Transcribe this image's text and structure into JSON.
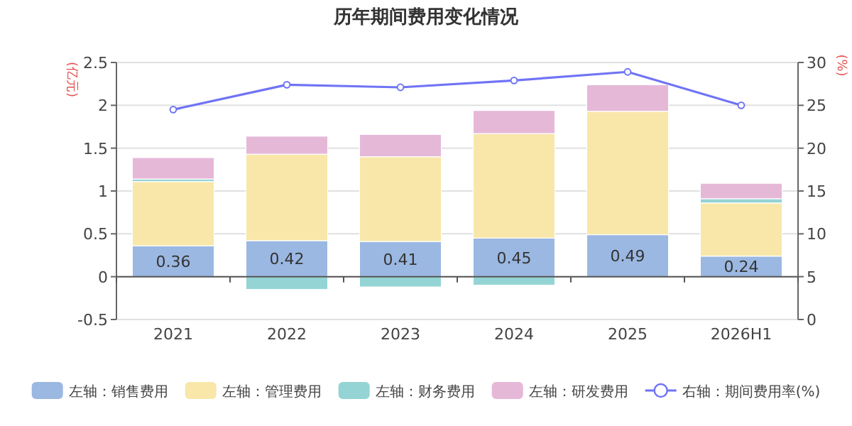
{
  "chart_data": {
    "type": "bar",
    "title": "历年期间费用变化情况",
    "ylabel": "(亿元)",
    "y2label": "(%)",
    "stacked": true,
    "categories": [
      "2021",
      "2022",
      "2023",
      "2024",
      "2025",
      "2026H1"
    ],
    "series": [
      {
        "name": "左轴：销售费用",
        "color": "#9bb8e2",
        "values": [
          0.36,
          0.42,
          0.41,
          0.45,
          0.49,
          0.24
        ],
        "value_labels": [
          "0.36",
          "0.42",
          "0.41",
          "0.45",
          "0.49",
          "0.24"
        ]
      },
      {
        "name": "左轴：管理费用",
        "color": "#f8e7a9",
        "values": [
          0.75,
          1.01,
          0.99,
          1.22,
          1.44,
          0.62
        ]
      },
      {
        "name": "左轴：财务费用",
        "color": "#94d4d4",
        "values": [
          0.03,
          -0.15,
          -0.12,
          -0.1,
          0,
          0.05
        ]
      },
      {
        "name": "左轴：研发费用",
        "color": "#e6b8d8",
        "values": [
          0.25,
          0.21,
          0.26,
          0.27,
          0.31,
          0.18
        ]
      },
      {
        "name": "右轴：期间费用率(%)",
        "type": "line",
        "axis": "y2",
        "marker": "circle",
        "color": "#6f74f5",
        "values": [
          24.5,
          27.4,
          27.1,
          27.9,
          28.9,
          25.0
        ]
      }
    ],
    "ylim": [
      -0.5,
      2.5
    ],
    "yticks": [
      -0.5,
      0,
      0.5,
      1,
      1.5,
      2,
      2.5
    ],
    "y2lim": [
      0,
      30
    ],
    "y2ticks": [
      0,
      5,
      10,
      15,
      20,
      25,
      30
    ],
    "grid": "y",
    "legend": "bottom"
  }
}
